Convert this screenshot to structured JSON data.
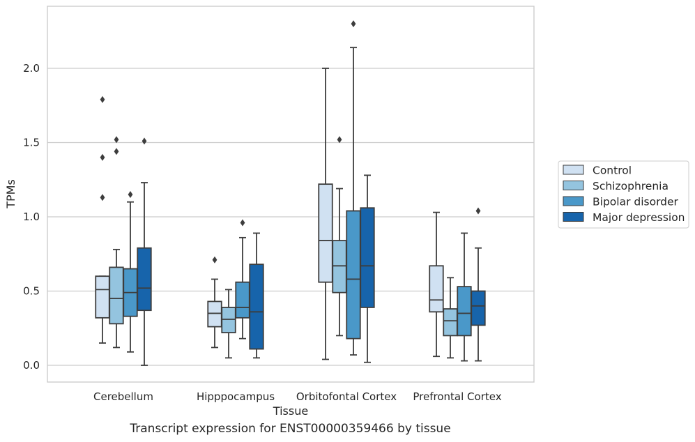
{
  "chart_data": {
    "type": "box",
    "title": "",
    "caption": "Transcript expression for ENST00000359466 by tissue",
    "xlabel": "Tissue",
    "ylabel": "TPMs",
    "ylim": [
      -0.11,
      2.42
    ],
    "yticks": [
      "0.0",
      "0.5",
      "1.0",
      "1.5",
      "2.0"
    ],
    "ytick_values": [
      0.0,
      0.5,
      1.0,
      1.5,
      2.0
    ],
    "grid": true,
    "legend_position": "right",
    "categories": [
      "Cerebellum",
      "Hipppocampus",
      "Orbitofontal Cortex",
      "Prefrontal Cortex"
    ],
    "series": [
      {
        "name": "Control",
        "color": "#d0e1f2",
        "boxes": [
          {
            "whislo": 0.15,
            "q1": 0.32,
            "med": 0.51,
            "q3": 0.6,
            "whishi": 0.6,
            "fliers": [
              1.13,
              1.4,
              1.79
            ]
          },
          {
            "whislo": 0.12,
            "q1": 0.26,
            "med": 0.35,
            "q3": 0.43,
            "whishi": 0.58,
            "fliers": [
              0.71
            ]
          },
          {
            "whislo": 0.04,
            "q1": 0.56,
            "med": 0.84,
            "q3": 1.22,
            "whishi": 2.0,
            "fliers": []
          },
          {
            "whislo": 0.06,
            "q1": 0.36,
            "med": 0.44,
            "q3": 0.67,
            "whishi": 1.03,
            "fliers": []
          }
        ]
      },
      {
        "name": "Schizophrenia",
        "color": "#94c4df",
        "boxes": [
          {
            "whislo": 0.12,
            "q1": 0.28,
            "med": 0.45,
            "q3": 0.66,
            "whishi": 0.78,
            "fliers": [
              1.44,
              1.52
            ]
          },
          {
            "whislo": 0.05,
            "q1": 0.22,
            "med": 0.31,
            "q3": 0.39,
            "whishi": 0.51,
            "fliers": []
          },
          {
            "whislo": 0.2,
            "q1": 0.49,
            "med": 0.67,
            "q3": 0.84,
            "whishi": 1.19,
            "fliers": [
              1.52
            ]
          },
          {
            "whislo": 0.05,
            "q1": 0.2,
            "med": 0.3,
            "q3": 0.38,
            "whishi": 0.59,
            "fliers": []
          }
        ]
      },
      {
        "name": "Bipolar disorder",
        "color": "#4a98c9",
        "boxes": [
          {
            "whislo": 0.09,
            "q1": 0.33,
            "med": 0.49,
            "q3": 0.65,
            "whishi": 1.1,
            "fliers": [
              1.15
            ]
          },
          {
            "whislo": 0.18,
            "q1": 0.32,
            "med": 0.39,
            "q3": 0.56,
            "whishi": 0.86,
            "fliers": [
              0.96
            ]
          },
          {
            "whislo": 0.07,
            "q1": 0.18,
            "med": 0.58,
            "q3": 1.04,
            "whishi": 2.14,
            "fliers": [
              2.3
            ]
          },
          {
            "whislo": 0.03,
            "q1": 0.2,
            "med": 0.35,
            "q3": 0.53,
            "whishi": 0.89,
            "fliers": []
          }
        ]
      },
      {
        "name": "Major depression",
        "color": "#1764ab",
        "boxes": [
          {
            "whislo": 0.0,
            "q1": 0.37,
            "med": 0.52,
            "q3": 0.79,
            "whishi": 1.23,
            "fliers": [
              1.51
            ]
          },
          {
            "whislo": 0.05,
            "q1": 0.11,
            "med": 0.36,
            "q3": 0.68,
            "whishi": 0.89,
            "fliers": []
          },
          {
            "whislo": 0.02,
            "q1": 0.39,
            "med": 0.67,
            "q3": 1.06,
            "whishi": 1.28,
            "fliers": []
          },
          {
            "whislo": 0.03,
            "q1": 0.27,
            "med": 0.4,
            "q3": 0.5,
            "whishi": 0.79,
            "fliers": [
              1.04
            ]
          }
        ]
      }
    ]
  }
}
